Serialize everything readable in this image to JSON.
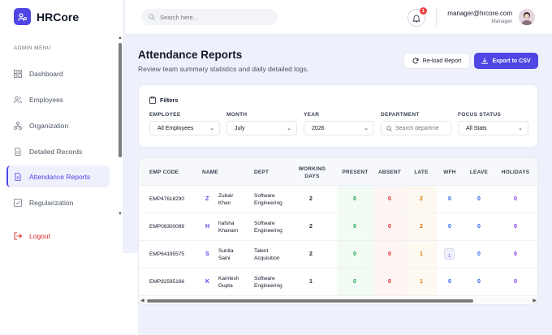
{
  "brand": {
    "name": "HRCore"
  },
  "sidebar": {
    "section_label": "ADMIN MENU",
    "items": [
      {
        "label": "Dashboard",
        "icon": "dashboard-icon"
      },
      {
        "label": "Employees",
        "icon": "users-icon"
      },
      {
        "label": "Organization",
        "icon": "org-chart-icon"
      },
      {
        "label": "Detailed Records",
        "icon": "document-icon"
      },
      {
        "label": "Attendance Reports",
        "icon": "report-icon",
        "active": true
      },
      {
        "label": "Regularization",
        "icon": "check-square-icon"
      }
    ],
    "logout_label": "Logout"
  },
  "header": {
    "search_placeholder": "Search here...",
    "notification_count": "1",
    "user_email": "manager@hrcore.com",
    "user_role": "Manager"
  },
  "page": {
    "title": "Attendance Reports",
    "subtitle": "Review team summary statistics and daily detailed logs.",
    "reload_label": "Re-load Report",
    "export_label": "Export to CSV"
  },
  "filters": {
    "title": "Filters",
    "employee": {
      "label": "EMPLOYEE",
      "value": "All Employees"
    },
    "month": {
      "label": "MONTH",
      "value": "July"
    },
    "year": {
      "label": "YEAR",
      "value": "2026"
    },
    "department": {
      "label": "DEPARTMENT",
      "placeholder": "Search departme"
    },
    "focus_status": {
      "label": "FOCUS STATUS",
      "value": "All Stats"
    }
  },
  "table": {
    "headers": {
      "emp_code": "EMP CODE",
      "name": "NAME",
      "dept": "DEPT",
      "working_days_1": "WORKING",
      "working_days_2": "DAYS",
      "present": "PRESENT",
      "absent": "ABSENT",
      "late": "LATE",
      "wfh": "WFH",
      "leave": "LEAVE",
      "holidays": "HOLIDAYS"
    },
    "rows": [
      {
        "code": "EMP47618290",
        "initial": "Z",
        "name1": "Zubair",
        "name2": "Khan",
        "dept1": "Software",
        "dept2": "Engineering",
        "working": "2",
        "present": "0",
        "absent": "0",
        "late": "2",
        "wfh": "0",
        "leave": "0",
        "holidays": "0"
      },
      {
        "code": "EMP08300089",
        "initial": "H",
        "name1": "hafsha",
        "name2": "Khanam",
        "dept1": "Software",
        "dept2": "Engineering",
        "working": "2",
        "present": "0",
        "absent": "0",
        "late": "2",
        "wfh": "0",
        "leave": "0",
        "holidays": "0"
      },
      {
        "code": "EMP64195575",
        "initial": "S",
        "name1": "Sunita",
        "name2": "Saini",
        "dept1": "Talent",
        "dept2": "Acquisition",
        "working": "2",
        "present": "0",
        "absent": "0",
        "late": "1",
        "wfh": "1",
        "leave": "0",
        "holidays": "0"
      },
      {
        "code": "EMP92595166",
        "initial": "K",
        "name1": "Kamlesh",
        "name2": "Gupta",
        "dept1": "Software",
        "dept2": "Engineering",
        "working": "1",
        "present": "0",
        "absent": "0",
        "late": "1",
        "wfh": "0",
        "leave": "0",
        "holidays": "0"
      }
    ]
  },
  "colors": {
    "accent": "#4f46e5",
    "present": "#16a34a",
    "absent": "#dc2626",
    "late": "#d97706",
    "wfh": "#2563eb",
    "holidays": "#7c3aed"
  }
}
